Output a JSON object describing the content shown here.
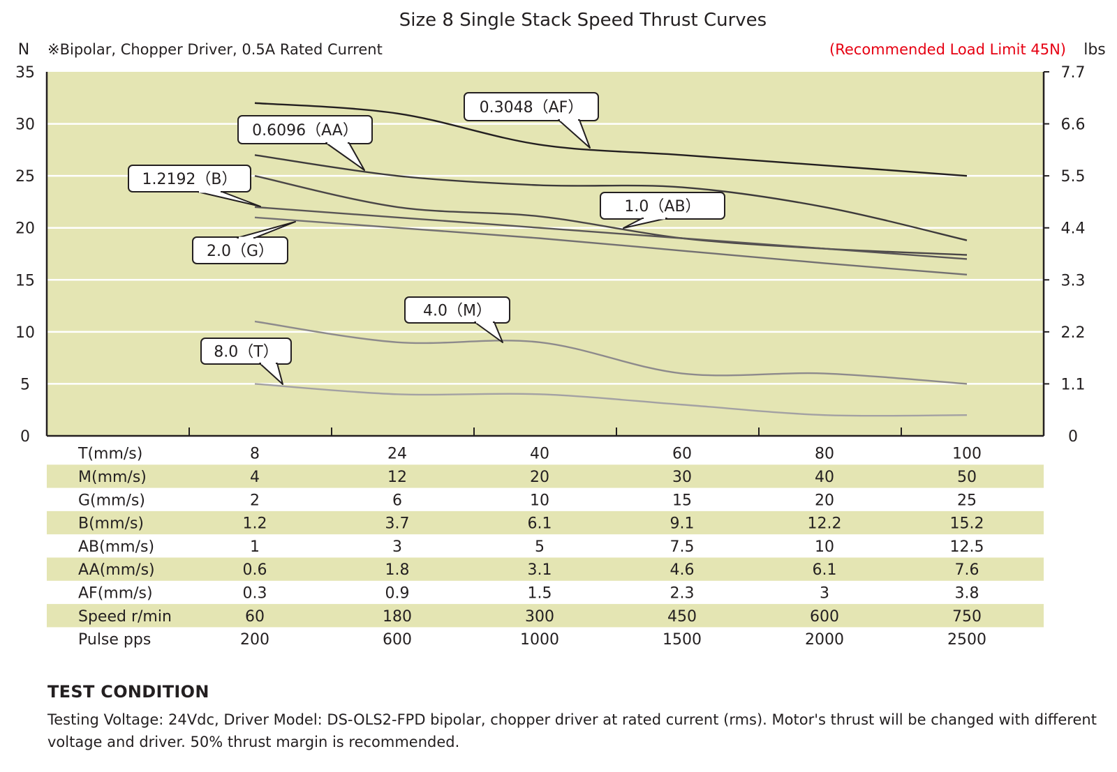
{
  "chart_data": {
    "type": "line",
    "title": "Size 8 Single Stack Speed Thrust Curves",
    "note": "※Bipolar, Chopper Driver, 0.5A Rated Current",
    "load_limit": "(Recommended Load Limit 45N)",
    "ylabel_left": "N",
    "ylabel_right": "lbs",
    "ylim": [
      0,
      35
    ],
    "y_ticks": [
      "0",
      "5",
      "10",
      "15",
      "20",
      "25",
      "30",
      "35"
    ],
    "y2_ticks": [
      "0",
      "1.1",
      "2.2",
      "3.3",
      "4.4",
      "5.5",
      "6.6",
      "7.7"
    ],
    "grid": true,
    "x_columns": 6,
    "series": [
      {
        "name": "0.3048（AF）",
        "color": "#231f20",
        "values": [
          32.0,
          31.0,
          28.0,
          27.0,
          26.0,
          25.0
        ]
      },
      {
        "name": "0.6096（AA）",
        "color": "#3d3a3b",
        "values": [
          27.0,
          25.0,
          24.1,
          23.9,
          22.0,
          18.8
        ]
      },
      {
        "name": "1.2192（B）",
        "color": "#4a4647",
        "values": [
          25.0,
          22.0,
          21.1,
          19.0,
          18.0,
          17.4
        ]
      },
      {
        "name": "1.0（AB）",
        "color": "#595556",
        "values": [
          22.0,
          21.0,
          20.0,
          19.0,
          18.0,
          17.0
        ]
      },
      {
        "name": "2.0（G）",
        "color": "#737072",
        "values": [
          21.0,
          20.0,
          19.0,
          17.8,
          16.6,
          15.5
        ]
      },
      {
        "name": "4.0（M）",
        "color": "#8d8a8c",
        "values": [
          11.0,
          9.0,
          9.0,
          6.0,
          6.0,
          5.0
        ]
      },
      {
        "name": "8.0（T）",
        "color": "#a3a1a3",
        "values": [
          5.0,
          4.0,
          4.0,
          3.0,
          2.0,
          2.0
        ]
      }
    ],
    "table": [
      {
        "label": "T(mm/s)",
        "values": [
          "8",
          "24",
          "40",
          "60",
          "80",
          "100"
        ]
      },
      {
        "label": "M(mm/s)",
        "values": [
          "4",
          "12",
          "20",
          "30",
          "40",
          "50"
        ]
      },
      {
        "label": "G(mm/s)",
        "values": [
          "2",
          "6",
          "10",
          "15",
          "20",
          "25"
        ]
      },
      {
        "label": "B(mm/s)",
        "values": [
          "1.2",
          "3.7",
          "6.1",
          "9.1",
          "12.2",
          "15.2"
        ]
      },
      {
        "label": "AB(mm/s)",
        "values": [
          "1",
          "3",
          "5",
          "7.5",
          "10",
          "12.5"
        ]
      },
      {
        "label": "AA(mm/s)",
        "values": [
          "0.6",
          "1.8",
          "3.1",
          "4.6",
          "6.1",
          "7.6"
        ]
      },
      {
        "label": "AF(mm/s)",
        "values": [
          "0.3",
          "0.9",
          "1.5",
          "2.3",
          "3",
          "3.8"
        ]
      },
      {
        "label": "Speed r/min",
        "values": [
          "60",
          "180",
          "300",
          "450",
          "600",
          "750"
        ]
      },
      {
        "label": "Pulse pps",
        "values": [
          "200",
          "600",
          "1000",
          "1500",
          "2000",
          "2500"
        ]
      }
    ],
    "colors": {
      "plot_bg": "#e4e5b3",
      "band_bg": "#e4e5b3",
      "grid": "#ffffff",
      "accent": "#e60012"
    }
  },
  "test_condition": {
    "heading": "TEST CONDITION",
    "text": "Testing Voltage: 24Vdc, Driver Model: DS-OLS2-FPD bipolar, chopper driver at rated current (rms). Motor's thrust will be changed with different voltage and driver. 50% thrust margin is recommended."
  }
}
